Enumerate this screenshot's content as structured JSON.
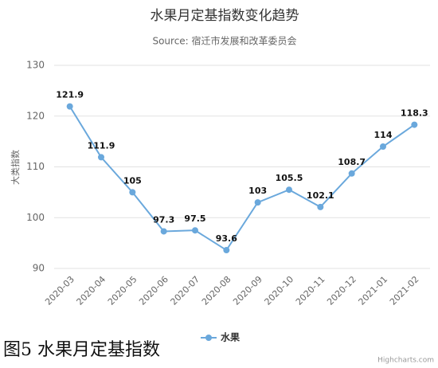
{
  "chart_data": {
    "type": "line",
    "title": "水果月定基指数变化趋势",
    "subtitle": "Source: 宿迁市发展和改革委员会",
    "y_label": "大类指数",
    "categories": [
      "2020-03",
      "2020-04",
      "2020-05",
      "2020-06",
      "2020-07",
      "2020-08",
      "2020-09",
      "2020-10",
      "2020-11",
      "2020-12",
      "2021-01",
      "2021-02"
    ],
    "series": [
      {
        "name": "水果",
        "color": "#6aa8dc",
        "values": [
          121.9,
          111.9,
          105,
          97.3,
          97.5,
          93.6,
          103,
          105.5,
          102.1,
          108.7,
          114,
          118.3
        ]
      }
    ],
    "ylim": [
      90,
      130
    ],
    "yticks": [
      90,
      100,
      110,
      120,
      130
    ],
    "grid": true,
    "legend": "bottom",
    "caption": "图5 水果月定基指数",
    "credits": "Highcharts.com"
  }
}
